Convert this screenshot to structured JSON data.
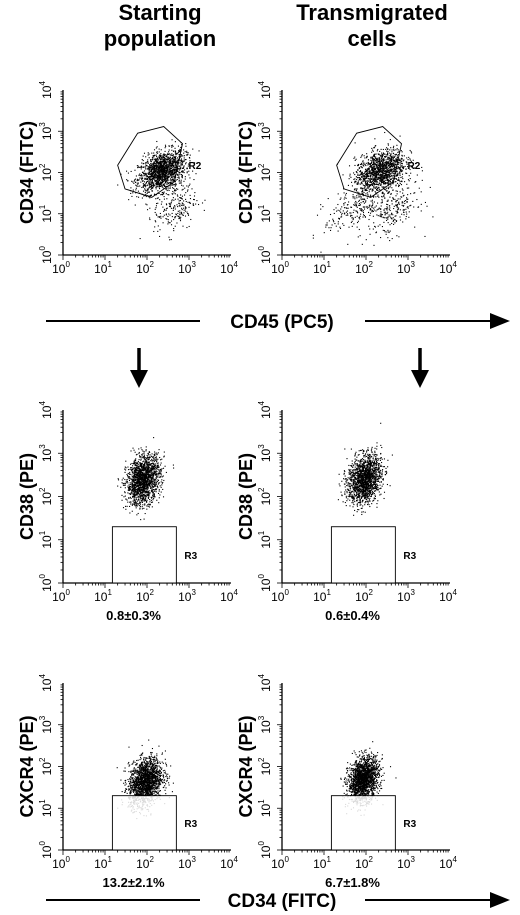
{
  "figure": {
    "columns": [
      {
        "title_line1": "Starting",
        "title_line2": "population"
      },
      {
        "title_line1": "Transmigrated",
        "title_line2": "cells"
      }
    ],
    "axis_arrows": {
      "top": "CD45 (PC5)",
      "bottom": "CD34 (FITC)"
    }
  },
  "chart_data": [
    {
      "type": "scatter",
      "id": "p-cd34-cd45-start",
      "xlabel": "",
      "ylabel": "CD34 (FITC)",
      "xscale": "log",
      "yscale": "log",
      "xlim": [
        1,
        10000
      ],
      "ylim": [
        1,
        10000
      ],
      "xticks": [
        "10^0",
        "10^1",
        "10^2",
        "10^3",
        "10^4"
      ],
      "yticks": [
        "10^0",
        "10^1",
        "10^2",
        "10^3",
        "10^4"
      ],
      "gate": {
        "label": "R2",
        "shape": "polygon",
        "vertices": [
          [
            20,
            150
          ],
          [
            60,
            900
          ],
          [
            250,
            1300
          ],
          [
            700,
            500
          ],
          [
            450,
            60
          ],
          [
            130,
            25
          ],
          [
            30,
            40
          ]
        ]
      },
      "annotation": "",
      "clusters": [
        {
          "center": [
            220,
            110
          ],
          "spread": [
            0.28,
            0.26
          ],
          "count": 1500
        },
        {
          "center": [
            450,
            15
          ],
          "spread": [
            0.25,
            0.35
          ],
          "count": 220
        }
      ]
    },
    {
      "type": "scatter",
      "id": "p-cd34-cd45-trans",
      "xlabel": "",
      "ylabel": "CD34 (FITC)",
      "xscale": "log",
      "yscale": "log",
      "xlim": [
        1,
        10000
      ],
      "ylim": [
        1,
        10000
      ],
      "xticks": [
        "10^0",
        "10^1",
        "10^2",
        "10^3",
        "10^4"
      ],
      "yticks": [
        "10^0",
        "10^1",
        "10^2",
        "10^3",
        "10^4"
      ],
      "gate": {
        "label": "R2",
        "shape": "polygon",
        "vertices": [
          [
            20,
            150
          ],
          [
            60,
            900
          ],
          [
            250,
            1300
          ],
          [
            700,
            500
          ],
          [
            450,
            60
          ],
          [
            130,
            25
          ],
          [
            30,
            40
          ]
        ]
      },
      "annotation": "",
      "clusters": [
        {
          "center": [
            210,
            110
          ],
          "spread": [
            0.3,
            0.28
          ],
          "count": 1300
        },
        {
          "center": [
            420,
            14
          ],
          "spread": [
            0.3,
            0.35
          ],
          "count": 260
        },
        {
          "center": [
            50,
            12
          ],
          "spread": [
            0.35,
            0.3
          ],
          "count": 200
        }
      ]
    },
    {
      "type": "scatter",
      "id": "p-cd38-cd34-start",
      "xlabel": "",
      "ylabel": "CD38 (PE)",
      "xscale": "log",
      "yscale": "log",
      "xlim": [
        1,
        10000
      ],
      "ylim": [
        1,
        10000
      ],
      "xticks": [
        "10^0",
        "10^1",
        "10^2",
        "10^3",
        "10^4"
      ],
      "yticks": [
        "10^0",
        "10^1",
        "10^2",
        "10^3",
        "10^4"
      ],
      "gate": {
        "label": "R3",
        "shape": "rectangle",
        "x": [
          15,
          500
        ],
        "y": [
          1,
          20
        ]
      },
      "annotation": "0.8±0.3%",
      "clusters": [
        {
          "center": [
            80,
            250
          ],
          "spread": [
            0.2,
            0.3
          ],
          "count": 1600
        }
      ]
    },
    {
      "type": "scatter",
      "id": "p-cd38-cd34-trans",
      "xlabel": "",
      "ylabel": "CD38 (PE)",
      "xscale": "log",
      "yscale": "log",
      "xlim": [
        1,
        10000
      ],
      "ylim": [
        1,
        10000
      ],
      "xticks": [
        "10^0",
        "10^1",
        "10^2",
        "10^3",
        "10^4"
      ],
      "yticks": [
        "10^0",
        "10^1",
        "10^2",
        "10^3",
        "10^4"
      ],
      "gate": {
        "label": "R3",
        "shape": "rectangle",
        "x": [
          15,
          500
        ],
        "y": [
          1,
          20
        ]
      },
      "annotation": "0.6±0.4%",
      "clusters": [
        {
          "center": [
            90,
            260
          ],
          "spread": [
            0.2,
            0.3
          ],
          "count": 1600
        }
      ]
    },
    {
      "type": "scatter",
      "id": "p-cxcr4-cd34-start",
      "xlabel": "",
      "ylabel": "CXCR4 (PE)",
      "xscale": "log",
      "yscale": "log",
      "xlim": [
        1,
        10000
      ],
      "ylim": [
        1,
        10000
      ],
      "xticks": [
        "10^0",
        "10^1",
        "10^2",
        "10^3",
        "10^4"
      ],
      "yticks": [
        "10^0",
        "10^1",
        "10^2",
        "10^3",
        "10^4"
      ],
      "gate": {
        "label": "R3",
        "shape": "rectangle",
        "x": [
          15,
          500
        ],
        "y": [
          1,
          20
        ]
      },
      "annotation": "13.2±2.1%",
      "clusters": [
        {
          "center": [
            90,
            45
          ],
          "spread": [
            0.2,
            0.3
          ],
          "count": 1700
        }
      ]
    },
    {
      "type": "scatter",
      "id": "p-cxcr4-cd34-trans",
      "xlabel": "",
      "ylabel": "CXCR4 (PE)",
      "xscale": "log",
      "yscale": "log",
      "xlim": [
        1,
        10000
      ],
      "ylim": [
        1,
        10000
      ],
      "xticks": [
        "10^0",
        "10^1",
        "10^2",
        "10^3",
        "10^4"
      ],
      "yticks": [
        "10^0",
        "10^1",
        "10^2",
        "10^3",
        "10^4"
      ],
      "gate": {
        "label": "R3",
        "shape": "rectangle",
        "x": [
          15,
          500
        ],
        "y": [
          1,
          20
        ]
      },
      "annotation": "6.7±1.8%",
      "clusters": [
        {
          "center": [
            85,
            50
          ],
          "spread": [
            0.18,
            0.28
          ],
          "count": 1700
        }
      ]
    }
  ]
}
